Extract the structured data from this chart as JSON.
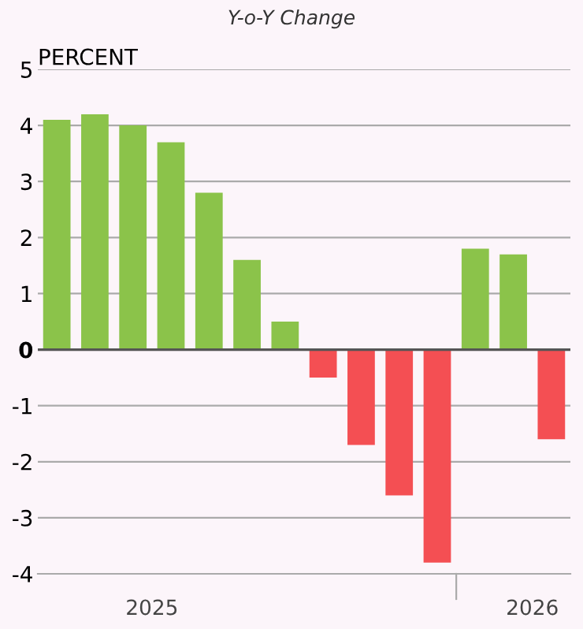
{
  "chart_data": {
    "type": "bar",
    "title": "Y-o-Y Change",
    "ylabel": "PERCENT",
    "categories": [
      null,
      null,
      null,
      null,
      null,
      null,
      null,
      null,
      null,
      null,
      null,
      null,
      null,
      null
    ],
    "values": [
      4.1,
      4.2,
      4.0,
      3.7,
      2.8,
      1.6,
      0.5,
      -0.5,
      -1.7,
      -2.6,
      -3.8,
      1.8,
      1.7,
      -1.6
    ],
    "colors": [
      "#8bc34a",
      "#8bc34a",
      "#8bc34a",
      "#8bc34a",
      "#8bc34a",
      "#8bc34a",
      "#8bc34a",
      "#f44f53",
      "#f44f53",
      "#f44f53",
      "#f44f53",
      "#8bc34a",
      "#8bc34a",
      "#f44f53"
    ],
    "ylim": [
      -4,
      5
    ],
    "yticks": [
      -4,
      -3,
      -2,
      -1,
      0,
      1,
      2,
      3,
      4,
      5
    ],
    "grid": "y",
    "annotations": [
      "2025",
      "2026"
    ]
  }
}
